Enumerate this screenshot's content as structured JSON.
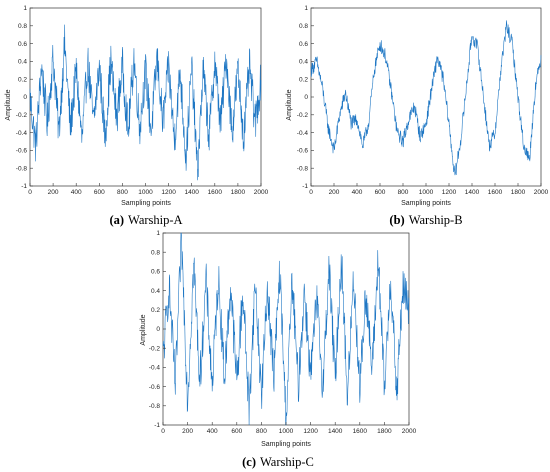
{
  "chart_data": [
    {
      "type": "line",
      "caption_prefix": "(a)",
      "caption_title": "Warship-A",
      "xlabel": "Sampling points",
      "ylabel": "Amplitude",
      "xlim": [
        0,
        2000
      ],
      "ylim": [
        -1,
        1
      ],
      "xticks": [
        "0",
        "200",
        "400",
        "600",
        "800",
        "1000",
        "1200",
        "1400",
        "1600",
        "1800",
        "2000"
      ],
      "yticks": [
        "-1",
        "-0.8",
        "-0.6",
        "-0.4",
        "-0.2",
        "0",
        "0.2",
        "0.4",
        "0.6",
        "0.8",
        "1"
      ],
      "color": "#1f77c4",
      "series": [
        {
          "x": [
            0,
            50,
            100,
            150,
            200,
            250,
            300,
            350,
            400,
            450,
            500,
            550,
            600,
            650,
            700,
            750,
            800,
            850,
            900,
            950,
            1000,
            1050,
            1100,
            1150,
            1200,
            1250,
            1300,
            1350,
            1400,
            1450,
            1500,
            1550,
            1600,
            1650,
            1700,
            1750,
            1800,
            1850,
            1900,
            1950,
            2000
          ],
          "y": [
            0.0,
            -0.55,
            0.35,
            -0.3,
            0.45,
            -0.4,
            0.6,
            -0.35,
            0.3,
            -0.5,
            0.4,
            -0.3,
            0.35,
            -0.45,
            0.4,
            -0.25,
            0.35,
            -0.4,
            0.45,
            -0.35,
            0.3,
            -0.4,
            0.45,
            -0.3,
            0.35,
            -0.5,
            0.3,
            -0.7,
            0.35,
            -0.85,
            0.3,
            -0.45,
            0.4,
            -0.3,
            0.45,
            -0.4,
            0.3,
            -0.45,
            0.35,
            -0.3,
            0.2
          ]
        }
      ]
    },
    {
      "type": "line",
      "caption_prefix": "(b)",
      "caption_title": "Warship-B",
      "xlabel": "Sampling points",
      "ylabel": "Amplitude",
      "xlim": [
        0,
        2000
      ],
      "ylim": [
        -1,
        1
      ],
      "xticks": [
        "0",
        "200",
        "400",
        "600",
        "800",
        "1000",
        "1200",
        "1400",
        "1600",
        "1800",
        "2000"
      ],
      "yticks": [
        "-1",
        "-0.8",
        "-0.6",
        "-0.4",
        "-0.2",
        "0",
        "0.2",
        "0.4",
        "0.6",
        "0.8",
        "1"
      ],
      "color": "#1f77c4",
      "series": [
        {
          "x": [
            0,
            50,
            100,
            150,
            200,
            250,
            300,
            350,
            400,
            450,
            500,
            550,
            600,
            650,
            700,
            750,
            800,
            850,
            900,
            950,
            1000,
            1050,
            1100,
            1150,
            1200,
            1250,
            1300,
            1350,
            1400,
            1450,
            1500,
            1550,
            1600,
            1650,
            1700,
            1750,
            1800,
            1850,
            1900,
            1950,
            2000
          ],
          "y": [
            0.3,
            0.4,
            0.1,
            -0.35,
            -0.6,
            -0.2,
            0.05,
            -0.3,
            -0.25,
            -0.55,
            -0.3,
            0.3,
            0.6,
            0.45,
            0.05,
            -0.4,
            -0.5,
            -0.25,
            -0.1,
            -0.45,
            -0.3,
            0.1,
            0.45,
            0.2,
            -0.3,
            -0.9,
            -0.5,
            0.1,
            0.7,
            0.55,
            0.0,
            -0.55,
            -0.4,
            0.3,
            0.8,
            0.6,
            0.0,
            -0.55,
            -0.7,
            0.1,
            0.45
          ]
        }
      ]
    },
    {
      "type": "line",
      "caption_prefix": "(c)",
      "caption_title": "Warship-C",
      "xlabel": "Sampling points",
      "ylabel": "Amplitude",
      "xlim": [
        0,
        2000
      ],
      "ylim": [
        -1,
        1
      ],
      "xticks": [
        "0",
        "200",
        "400",
        "600",
        "800",
        "1000",
        "1200",
        "1400",
        "1600",
        "1800",
        "2000"
      ],
      "yticks": [
        "-1",
        "-0.8",
        "-0.6",
        "-0.4",
        "-0.2",
        "0",
        "0.2",
        "0.4",
        "0.6",
        "0.8",
        "1"
      ],
      "color": "#1f77c4",
      "series": [
        {
          "x": [
            0,
            50,
            100,
            150,
            200,
            250,
            300,
            350,
            400,
            450,
            500,
            550,
            600,
            650,
            700,
            750,
            800,
            850,
            900,
            950,
            1000,
            1050,
            1100,
            1150,
            1200,
            1250,
            1300,
            1350,
            1400,
            1450,
            1500,
            1550,
            1600,
            1650,
            1700,
            1750,
            1800,
            1850,
            1900,
            1950,
            2000
          ],
          "y": [
            -0.3,
            0.45,
            -0.6,
            0.95,
            -0.75,
            0.7,
            -0.55,
            0.5,
            -0.6,
            0.55,
            -0.5,
            0.45,
            -0.55,
            0.4,
            -0.85,
            0.5,
            -0.7,
            0.45,
            -0.5,
            0.6,
            -0.95,
            0.5,
            -0.6,
            0.4,
            -0.5,
            0.3,
            -0.6,
            0.65,
            -0.55,
            0.75,
            -0.7,
            0.55,
            -0.6,
            0.4,
            -0.45,
            0.75,
            -0.65,
            0.55,
            -0.7,
            0.45,
            0.2
          ]
        }
      ]
    }
  ]
}
